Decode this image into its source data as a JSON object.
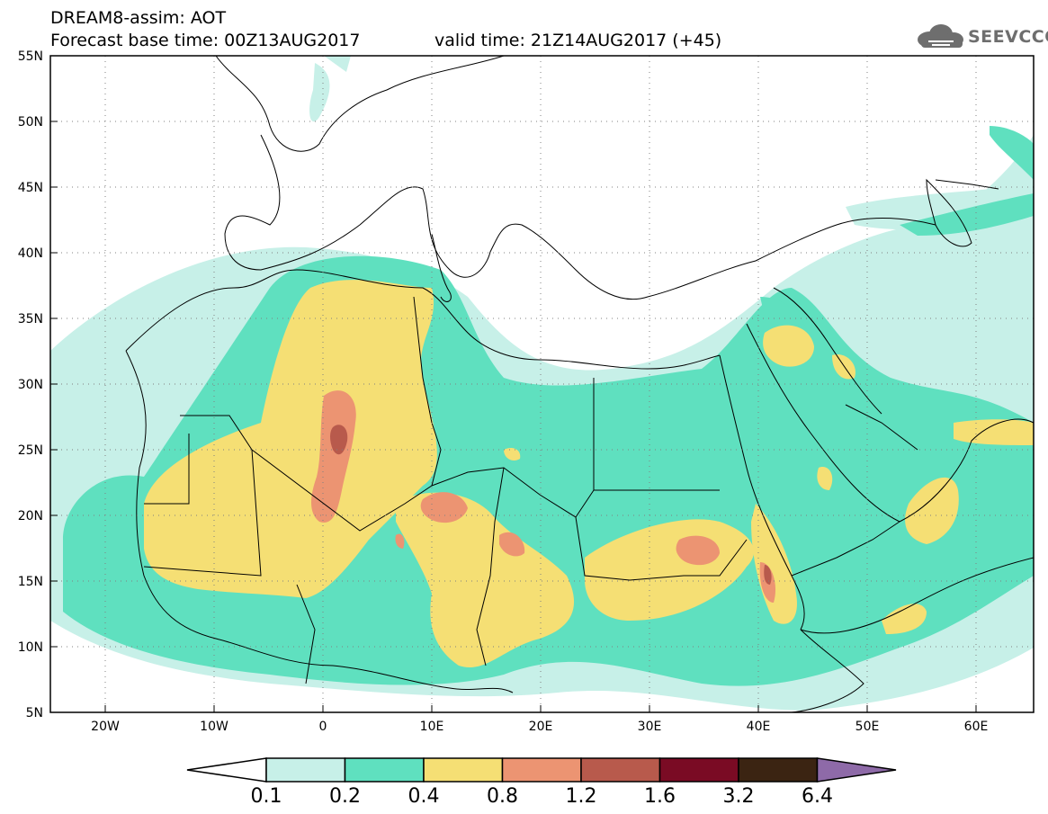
{
  "header": {
    "model_line": "DREAM8-assim: AOT",
    "base_time_line": "Forecast base time: 00Z13AUG2017",
    "valid_time_line": "valid time: 21Z14AUG2017 (+45)"
  },
  "logo": {
    "text": "SEEVCCC",
    "icon": "cloud-icon"
  },
  "map": {
    "region": "North Africa / Middle East",
    "lon_range": [
      -25,
      65
    ],
    "lat_range": [
      5,
      55
    ],
    "lat_labels": [
      "55N",
      "50N",
      "45N",
      "40N",
      "35N",
      "30N",
      "25N",
      "20N",
      "15N",
      "10N",
      "5N"
    ],
    "lon_labels": [
      "20W",
      "10W",
      "0",
      "10E",
      "20E",
      "30E",
      "40E",
      "50E",
      "60E"
    ],
    "grid": "dotted",
    "colors": {
      "c1": "#c7f0e8",
      "c2": "#5fe0bf",
      "c3": "#f5df74",
      "c4": "#ec9472",
      "c5": "#b85a4c",
      "c6": "#7a0b24",
      "c7": "#3b2412",
      "c8": "#8e6aa8"
    }
  },
  "colorbar": {
    "labels": [
      "0.1",
      "0.2",
      "0.4",
      "0.8",
      "1.2",
      "1.6",
      "3.2",
      "6.4"
    ],
    "colors": [
      "#c7f0e8",
      "#5fe0bf",
      "#f5df74",
      "#ec9472",
      "#b85a4c",
      "#7a0b24",
      "#3b2412"
    ],
    "low_end_color": "#ffffff",
    "high_end_color": "#8e6aa8"
  }
}
